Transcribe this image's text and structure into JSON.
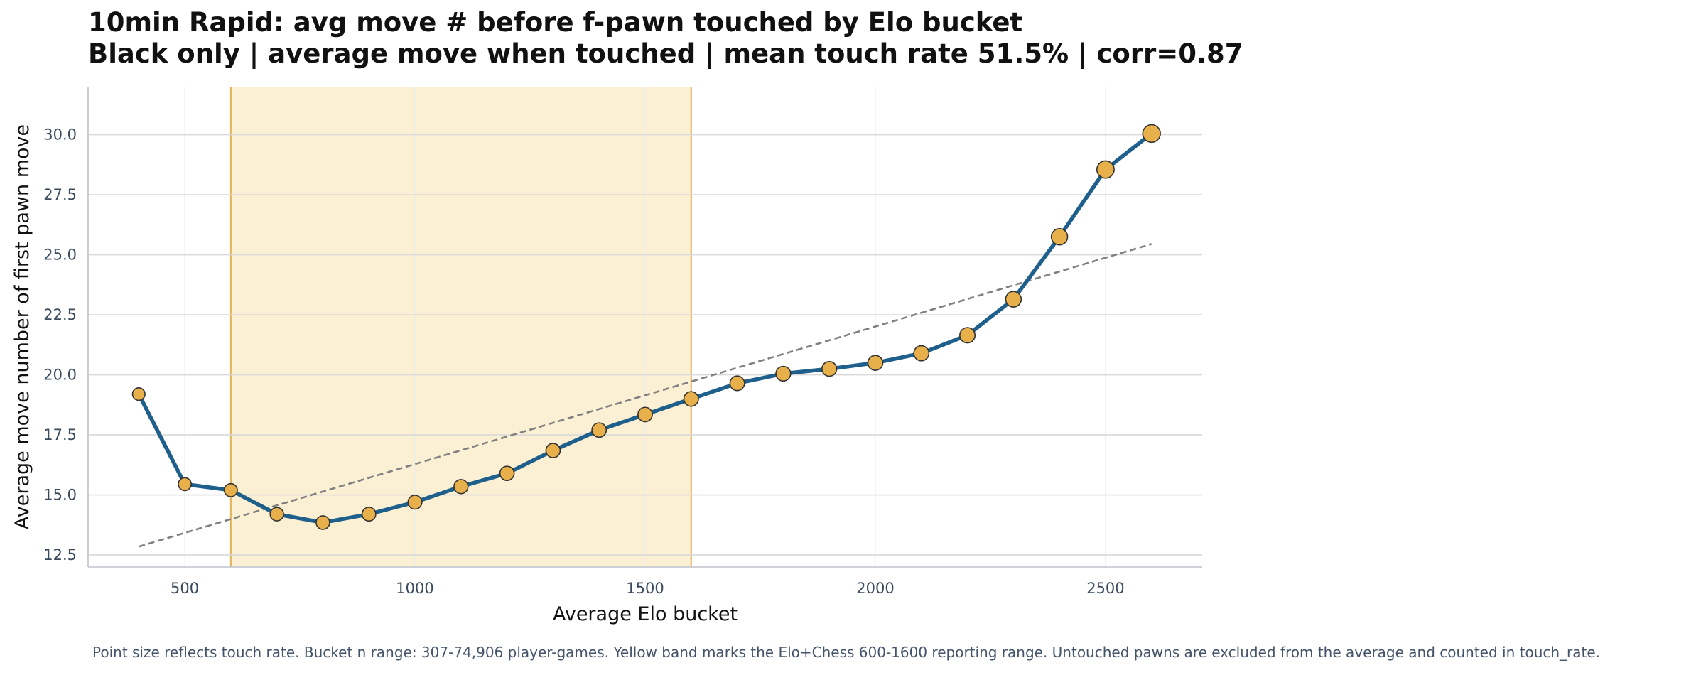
{
  "title_line1": "10min Rapid: avg move # before f-pawn touched by Elo bucket",
  "title_line2": "Black only | average move when touched | mean touch rate 51.5% | corr=0.87",
  "footnote": "Point size reflects touch rate. Bucket n range: 307-74,906 player-games. Yellow band marks the Elo+Chess 600-1600 reporting range. Untouched pawns are excluded from the average and counted in touch_rate.",
  "colors": {
    "line": "#1f5f8b",
    "marker_fill": "#e8b04b",
    "marker_edge": "#333333",
    "band": "#fbf0d3",
    "band_edge": "#e3b15a",
    "trend": "#808080",
    "grid": "#d9d9d9"
  },
  "chart_data": {
    "type": "line",
    "xlabel": "Average Elo bucket",
    "ylabel": "Average move number of first pawn move",
    "xlim": [
      290,
      2710
    ],
    "ylim": [
      12.0,
      32.0
    ],
    "xticks": [
      500,
      1000,
      1500,
      2000,
      2500
    ],
    "yticks": [
      12.5,
      15.0,
      17.5,
      20.0,
      22.5,
      25.0,
      27.5,
      30.0
    ],
    "ytick_labels": [
      "12.5",
      "15.0",
      "17.5",
      "20.0",
      "22.5",
      "25.0",
      "27.5",
      "30.0"
    ],
    "band": [
      600,
      1600
    ],
    "trend_line": {
      "x": [
        400,
        2600
      ],
      "y": [
        12.85,
        25.45
      ],
      "style": "dashed"
    },
    "grid": true,
    "series": [
      {
        "x": [
          400,
          500,
          600,
          700,
          800,
          900,
          1000,
          1100,
          1200,
          1300,
          1400,
          1500,
          1600,
          1700,
          1800,
          1900,
          2000,
          2100,
          2200,
          2300,
          2400,
          2500,
          2600
        ],
        "y": [
          19.2,
          15.45,
          15.2,
          14.2,
          13.85,
          14.2,
          14.7,
          15.35,
          15.9,
          16.85,
          17.7,
          18.35,
          19.0,
          19.65,
          20.05,
          20.25,
          20.5,
          20.9,
          21.65,
          23.15,
          25.75,
          28.55,
          30.05
        ],
        "touch_rate": [
          0.4,
          0.42,
          0.43,
          0.45,
          0.46,
          0.47,
          0.48,
          0.49,
          0.5,
          0.5,
          0.51,
          0.51,
          0.52,
          0.52,
          0.53,
          0.53,
          0.54,
          0.55,
          0.56,
          0.58,
          0.62,
          0.68,
          0.7
        ]
      }
    ]
  }
}
